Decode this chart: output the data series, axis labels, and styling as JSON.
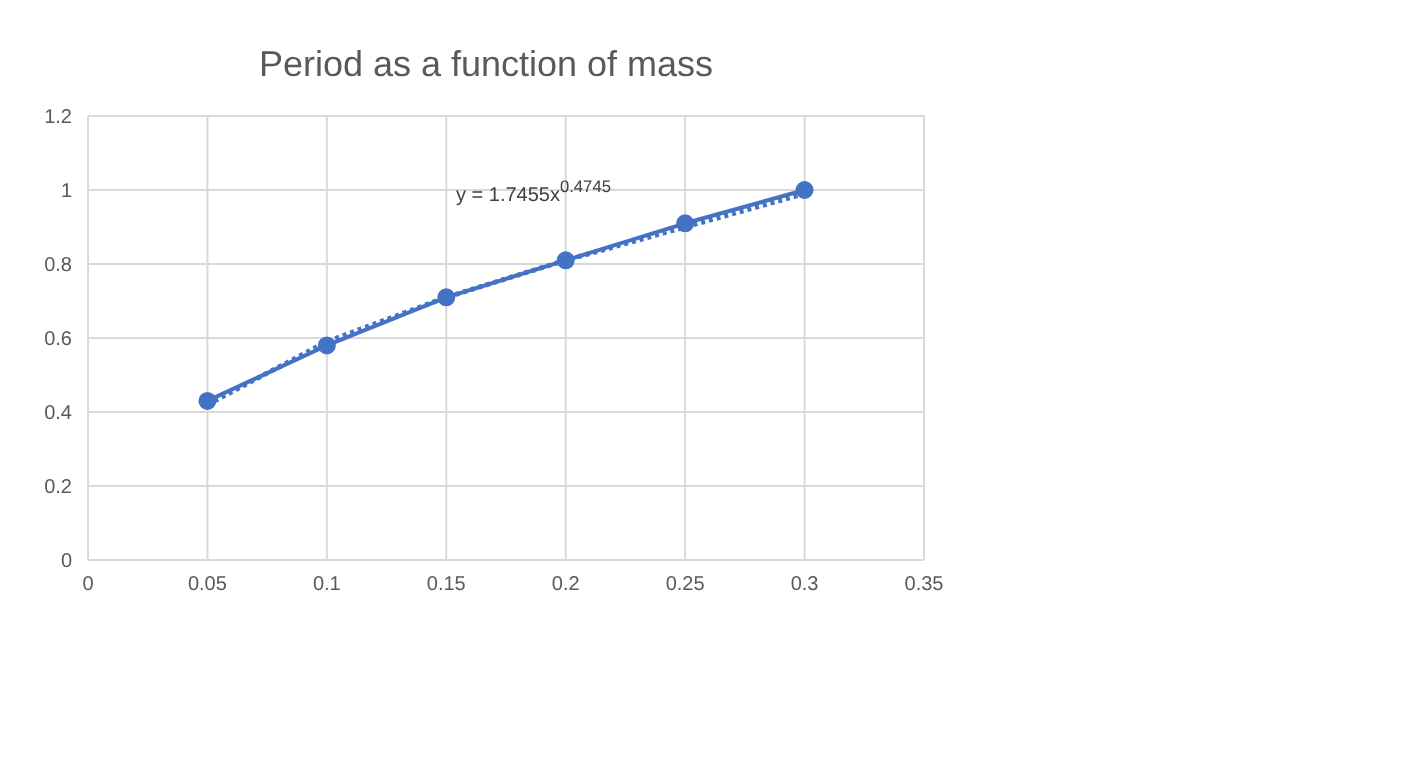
{
  "chart_data": {
    "type": "line",
    "title": "Period as a function of mass",
    "xlim": [
      0,
      0.35
    ],
    "xticks": [
      0,
      0.05,
      0.1,
      0.15,
      0.2,
      0.25,
      0.3,
      0.35
    ],
    "ylim": [
      0,
      1.2
    ],
    "yticks": [
      0,
      0.2,
      0.4,
      0.6,
      0.8,
      1,
      1.2
    ],
    "grid": true,
    "series": [
      {
        "color": "#4472c4",
        "marker": "circle",
        "line_style": "solid",
        "x": [
          0.05,
          0.1,
          0.15,
          0.2,
          0.25,
          0.3
        ],
        "values": [
          0.43,
          0.58,
          0.71,
          0.81,
          0.91,
          1.0
        ]
      },
      {
        "color": "#4472c4",
        "marker": "none",
        "line_style": "dotted",
        "x": [
          0.05,
          0.1,
          0.15,
          0.2,
          0.25,
          0.3
        ],
        "values": [
          0.42,
          0.59,
          0.71,
          0.81,
          0.9,
          0.99
        ]
      }
    ],
    "annotations": [
      "y = 1.7455x$^{0.4745}$"
    ]
  }
}
